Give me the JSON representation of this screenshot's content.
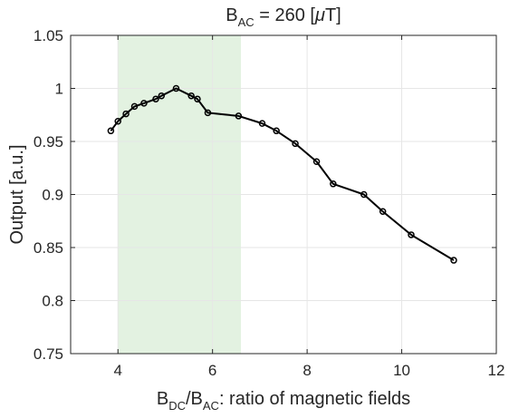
{
  "chart_data": {
    "type": "line",
    "title": {
      "base": "B",
      "sub": "AC",
      "rest": " = 260 [",
      "mu": "μ",
      "unit": "T]"
    },
    "xlabel": {
      "b1": "B",
      "s1": "DC",
      "mid": "/B",
      "s2": "AC",
      "rest": ": ratio of magnetic fields"
    },
    "ylabel": "Output [a.u.]",
    "xlim": [
      3,
      12
    ],
    "ylim": [
      0.75,
      1.05
    ],
    "xticks": [
      4,
      6,
      8,
      10,
      12
    ],
    "xtick_labels": [
      "4",
      "6",
      "8",
      "10",
      "12"
    ],
    "yticks": [
      0.75,
      0.8,
      0.85,
      0.9,
      0.95,
      1,
      1.05
    ],
    "ytick_labels": [
      "0.75",
      "0.8",
      "0.85",
      "0.9",
      "0.95",
      "1",
      "1.05"
    ],
    "grid": true,
    "highlight_band": {
      "x_start": 4.0,
      "x_end": 6.6,
      "color": "#e3f2e1"
    },
    "series": [
      {
        "color": "#000000",
        "marker": "circle",
        "x": [
          3.85,
          4.0,
          4.17,
          4.35,
          4.55,
          4.8,
          4.92,
          5.23,
          5.55,
          5.68,
          5.9,
          6.55,
          7.05,
          7.35,
          7.75,
          8.2,
          8.55,
          9.2,
          9.6,
          10.2,
          11.1
        ],
        "y": [
          0.96,
          0.969,
          0.976,
          0.983,
          0.986,
          0.99,
          0.993,
          1.0,
          0.993,
          0.99,
          0.977,
          0.974,
          0.967,
          0.96,
          0.948,
          0.931,
          0.91,
          0.9,
          0.884,
          0.862,
          0.838
        ]
      }
    ]
  }
}
